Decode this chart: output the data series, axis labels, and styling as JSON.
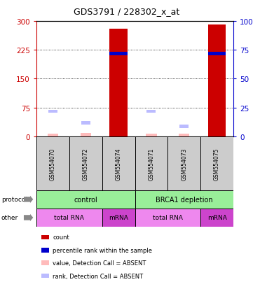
{
  "title": "GDS3791 / 228302_x_at",
  "samples": [
    "GSM554070",
    "GSM554072",
    "GSM554074",
    "GSM554071",
    "GSM554073",
    "GSM554075"
  ],
  "count_values": [
    8,
    10,
    280,
    9,
    8,
    290
  ],
  "percentile_values": [
    null,
    null,
    215,
    null,
    null,
    215
  ],
  "absent_value_values": [
    8,
    9,
    null,
    8,
    8,
    null
  ],
  "absent_rank_values": [
    22,
    12,
    null,
    22,
    9,
    null
  ],
  "ylim_left": [
    0,
    300
  ],
  "ylim_right": [
    0,
    100
  ],
  "yticks_left": [
    0,
    75,
    150,
    225,
    300
  ],
  "ytick_labels_left": [
    "0",
    "75",
    "150",
    "225",
    "300"
  ],
  "yticks_right": [
    0,
    25,
    50,
    75,
    100
  ],
  "ytick_labels_right": [
    "0",
    "25",
    "50",
    "75",
    "100%"
  ],
  "left_axis_color": "#cc0000",
  "right_axis_color": "#0000cc",
  "bar_color": "#cc0000",
  "percentile_color": "#0000cc",
  "absent_value_color": "#ffbbbb",
  "absent_rank_color": "#bbbbff",
  "protocol_color": "#99ee99",
  "totalrna_color": "#ee88ee",
  "mrna_color": "#cc44cc",
  "legend_items": [
    {
      "label": "count",
      "color": "#cc0000"
    },
    {
      "label": "percentile rank within the sample",
      "color": "#0000cc"
    },
    {
      "label": "value, Detection Call = ABSENT",
      "color": "#ffbbbb"
    },
    {
      "label": "rank, Detection Call = ABSENT",
      "color": "#bbbbff"
    }
  ]
}
